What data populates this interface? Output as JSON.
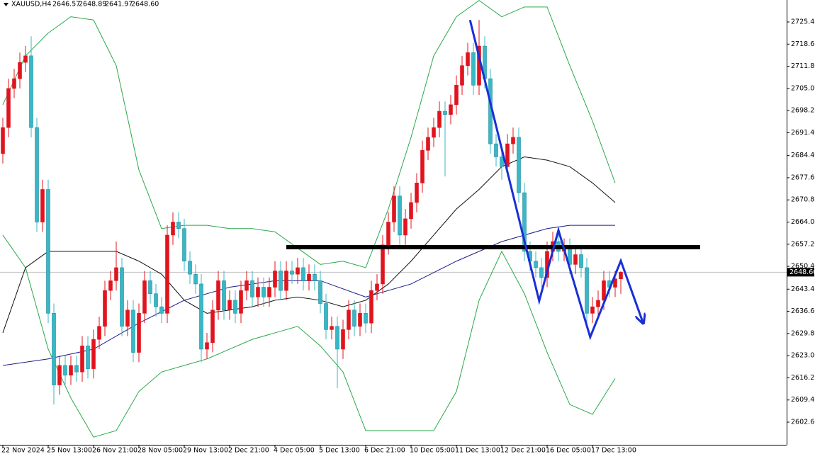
{
  "chart_data": {
    "type": "candlestick",
    "symbol": "XAUUSD,H4",
    "header_values": [
      "2646.57",
      "2648.89",
      "2641.97",
      "2648.60"
    ],
    "up_color": "#e0141e",
    "down_color": "#3ab7c6",
    "categories": [
      "22 Nov 2024",
      null,
      null,
      null,
      null,
      null,
      null,
      null,
      "25 Nov 13:00",
      null,
      null,
      null,
      null,
      null,
      null,
      null,
      "26 Nov 21:00",
      null,
      null,
      null,
      null,
      null,
      null,
      null,
      "28 Nov 05:00",
      null,
      null,
      null,
      null,
      null,
      null,
      null,
      "29 Nov 13:00",
      null,
      null,
      null,
      null,
      null,
      null,
      null,
      "2 Dec 21:00",
      null,
      null,
      null,
      null,
      null,
      null,
      null,
      "4 Dec 05:00",
      null,
      null,
      null,
      null,
      null,
      null,
      null,
      "5 Dec 13:00",
      null,
      null,
      null,
      null,
      null,
      null,
      null,
      "6 Dec 21:00",
      null,
      null,
      null,
      null,
      null,
      null,
      null,
      "10 Dec 05:00",
      null,
      null,
      null,
      null,
      null,
      null,
      null,
      "11 Dec 13:00",
      null,
      null,
      null,
      null,
      null,
      null,
      null,
      "12 Dec 21:00",
      null,
      null,
      null,
      null,
      null,
      null,
      null,
      "16 Dec 05:00",
      null,
      null,
      null,
      null,
      null,
      null,
      null,
      "17 Dec 13:00",
      null,
      null,
      null,
      null,
      null
    ],
    "open": [
      2685,
      2693,
      2705,
      2708,
      2713,
      2715,
      2693,
      2664,
      2674,
      2636,
      2614,
      2620,
      2617,
      2620,
      2618,
      2626,
      2619,
      2628,
      2632,
      2643,
      2646,
      2650,
      2632,
      2637,
      2624,
      2636,
      2646,
      2642,
      2638,
      2636,
      2660,
      2664,
      2662,
      2652,
      2648,
      2645,
      2625,
      2627,
      2637,
      2646,
      2637,
      2640,
      2636,
      2643,
      2646,
      2641,
      2644,
      2641,
      2644,
      2649,
      2643,
      2649,
      2648,
      2650,
      2646,
      2648,
      2646,
      2639,
      2631,
      2632,
      2625,
      2631,
      2637,
      2632,
      2636,
      2633,
      2643,
      2645,
      2657,
      2664,
      2672,
      2660,
      2665,
      2670,
      2676,
      2686,
      2690,
      2693,
      2698,
      2697,
      2700,
      2706,
      2712,
      2716,
      2706,
      2718,
      2708,
      2688,
      2684,
      2681,
      2688,
      2690,
      2673,
      2655,
      2652,
      2650,
      2647,
      2655,
      2658,
      2655,
      2656,
      2651,
      2654,
      2650,
      2636,
      2638,
      2640,
      2646,
      2644,
      2646.57
    ],
    "high": [
      2696,
      2708,
      2711,
      2716,
      2718,
      2721,
      2696,
      2677,
      2677,
      2639,
      2623,
      2623,
      2623,
      2623,
      2629,
      2629,
      2631,
      2635,
      2646,
      2649,
      2658,
      2653,
      2640,
      2640,
      2639,
      2649,
      2649,
      2645,
      2641,
      2663,
      2667,
      2667,
      2665,
      2655,
      2651,
      2648,
      2630,
      2640,
      2649,
      2649,
      2643,
      2643,
      2646,
      2649,
      2649,
      2647,
      2647,
      2647,
      2652,
      2652,
      2652,
      2652,
      2653,
      2653,
      2651,
      2651,
      2649,
      2642,
      2635,
      2635,
      2634,
      2640,
      2640,
      2639,
      2639,
      2646,
      2648,
      2660,
      2667,
      2675,
      2675,
      2668,
      2673,
      2679,
      2689,
      2693,
      2696,
      2701,
      2701,
      2703,
      2709,
      2715,
      2719,
      2719,
      2726,
      2721,
      2711,
      2691,
      2687,
      2691,
      2693,
      2693,
      2676,
      2658,
      2655,
      2653,
      2658,
      2661,
      2661,
      2659,
      2659,
      2657,
      2657,
      2653,
      2641,
      2643,
      2649,
      2649,
      2649,
      2648.89
    ],
    "low": [
      2682,
      2690,
      2702,
      2705,
      2710,
      2690,
      2661,
      2661,
      2633,
      2608,
      2611,
      2614,
      2614,
      2615,
      2615,
      2616,
      2616,
      2625,
      2629,
      2640,
      2643,
      2629,
      2629,
      2621,
      2621,
      2633,
      2639,
      2635,
      2633,
      2633,
      2657,
      2659,
      2649,
      2645,
      2642,
      2621,
      2622,
      2624,
      2634,
      2634,
      2634,
      2633,
      2633,
      2640,
      2638,
      2638,
      2638,
      2638,
      2641,
      2640,
      2640,
      2645,
      2645,
      2643,
      2643,
      2643,
      2636,
      2628,
      2628,
      2613,
      2622,
      2628,
      2629,
      2629,
      2630,
      2630,
      2640,
      2642,
      2654,
      2661,
      2657,
      2657,
      2662,
      2667,
      2673,
      2683,
      2687,
      2690,
      2678,
      2694,
      2697,
      2703,
      2709,
      2703,
      2703,
      2705,
      2685,
      2681,
      2677,
      2678,
      2685,
      2670,
      2652,
      2649,
      2647,
      2644,
      2644,
      2652,
      2652,
      2652,
      2648,
      2648,
      2647,
      2633,
      2633,
      2635,
      2637,
      2641,
      2641,
      2641.97
    ],
    "close": [
      2693,
      2705,
      2708,
      2713,
      2715,
      2693,
      2664,
      2674,
      2636,
      2614,
      2620,
      2617,
      2620,
      2618,
      2626,
      2619,
      2628,
      2632,
      2643,
      2646,
      2650,
      2632,
      2637,
      2624,
      2636,
      2646,
      2642,
      2638,
      2636,
      2660,
      2664,
      2662,
      2652,
      2648,
      2645,
      2625,
      2627,
      2637,
      2646,
      2637,
      2640,
      2636,
      2643,
      2646,
      2641,
      2644,
      2641,
      2644,
      2649,
      2643,
      2649,
      2648,
      2650,
      2646,
      2648,
      2646,
      2639,
      2631,
      2632,
      2625,
      2631,
      2637,
      2632,
      2636,
      2633,
      2643,
      2645,
      2657,
      2664,
      2672,
      2660,
      2665,
      2670,
      2676,
      2686,
      2690,
      2693,
      2698,
      2697,
      2700,
      2706,
      2712,
      2716,
      2706,
      2718,
      2708,
      2688,
      2684,
      2681,
      2688,
      2690,
      2673,
      2655,
      2652,
      2650,
      2647,
      2655,
      2658,
      2655,
      2656,
      2651,
      2654,
      2650,
      2636,
      2638,
      2640,
      2646,
      2644,
      2646.57,
      2648.6
    ],
    "lines": [
      {
        "color": "#2aa84a",
        "x": [
          0,
          4,
          8,
          12,
          16,
          20,
          24,
          28,
          32,
          36,
          40,
          44,
          48,
          52,
          56,
          60,
          64,
          68,
          72,
          76,
          80,
          84,
          88,
          92,
          96,
          100,
          104,
          108
        ],
        "values": [
          2700,
          2715,
          2722,
          2727,
          2726,
          2712,
          2680,
          2662,
          2663,
          2663,
          2662,
          2662,
          2661,
          2656,
          2651,
          2652,
          2650,
          2668,
          2690,
          2715,
          2727,
          2732,
          2727,
          2730,
          2730,
          2712,
          2695,
          2676
        ]
      },
      {
        "color": "#2aa84a",
        "x": [
          0,
          4,
          8,
          12,
          16,
          20,
          24,
          28,
          32,
          36,
          40,
          44,
          48,
          52,
          56,
          60,
          64,
          68,
          72,
          76,
          80,
          84,
          88,
          92,
          96,
          100,
          104,
          108
        ],
        "values": [
          2660,
          2650,
          2625,
          2610,
          2598,
          2600,
          2612,
          2618,
          2620,
          2622,
          2625,
          2628,
          2630,
          2632,
          2626,
          2618,
          2600,
          2600,
          2600,
          2600,
          2612,
          2640,
          2655,
          2642,
          2624,
          2608,
          2605,
          2616
        ]
      },
      {
        "color": "#111111",
        "x": [
          0,
          4,
          8,
          12,
          16,
          20,
          24,
          28,
          32,
          36,
          40,
          44,
          48,
          52,
          56,
          60,
          64,
          68,
          72,
          76,
          80,
          84,
          88,
          92,
          96,
          100,
          104,
          108
        ],
        "values": [
          2630,
          2650,
          2655,
          2655,
          2655,
          2655,
          2652,
          2648,
          2640,
          2636,
          2637,
          2638,
          2640,
          2641,
          2640,
          2638,
          2640,
          2645,
          2652,
          2660,
          2668,
          2674,
          2681,
          2684,
          2683,
          2681,
          2676,
          2670
        ]
      },
      {
        "color": "#1c1c8a",
        "x": [
          0,
          8,
          16,
          24,
          32,
          40,
          48,
          56,
          64,
          72,
          80,
          88,
          96,
          100,
          104,
          108
        ],
        "values": [
          2620,
          2622,
          2625,
          2633,
          2640,
          2644,
          2646,
          2646,
          2641,
          2645,
          2652,
          2658,
          2662,
          2663,
          2663,
          2663
        ]
      }
    ],
    "level": {
      "value": 2656.3,
      "x": [
        50,
        123
      ]
    },
    "drawing": {
      "color": "#1a2fd6",
      "x": [
        82.4,
        94.6,
        98,
        103.6,
        109,
        112.9
      ],
      "values": [
        2726,
        2639.8,
        2661.5,
        2628.7,
        2652.1,
        2633.2
      ]
    },
    "current_price": {
      "value": 2648.6,
      "label": "2648.60"
    },
    "ylim": [
      2595.65,
      2732.14
    ],
    "yticks": [
      {
        "value": 2725.4,
        "label": "2725.40"
      },
      {
        "value": 2718.6,
        "label": "2718.60"
      },
      {
        "value": 2711.8,
        "label": "2711.80"
      },
      {
        "value": 2705,
        "label": "2705.00"
      },
      {
        "value": 2698.2,
        "label": "2698.20"
      },
      {
        "value": 2691.4,
        "label": "2691.40"
      },
      {
        "value": 2684.4,
        "label": "2684.40"
      },
      {
        "value": 2677.6,
        "label": "2677.60"
      },
      {
        "value": 2670.8,
        "label": "2670.80"
      },
      {
        "value": 2664,
        "label": "2664.00"
      },
      {
        "value": 2657.2,
        "label": "2657.20"
      },
      {
        "value": 2650.4,
        "label": "2650.40"
      },
      {
        "value": 2643.4,
        "label": "2643.40"
      },
      {
        "value": 2636.6,
        "label": "2636.60"
      },
      {
        "value": 2629.8,
        "label": "2629.80"
      },
      {
        "value": 2623,
        "label": "2623.00"
      },
      {
        "value": 2616.2,
        "label": "2616.20"
      },
      {
        "value": 2609.4,
        "label": "2609.40"
      },
      {
        "value": 2602.6,
        "label": "2602.60"
      }
    ]
  }
}
